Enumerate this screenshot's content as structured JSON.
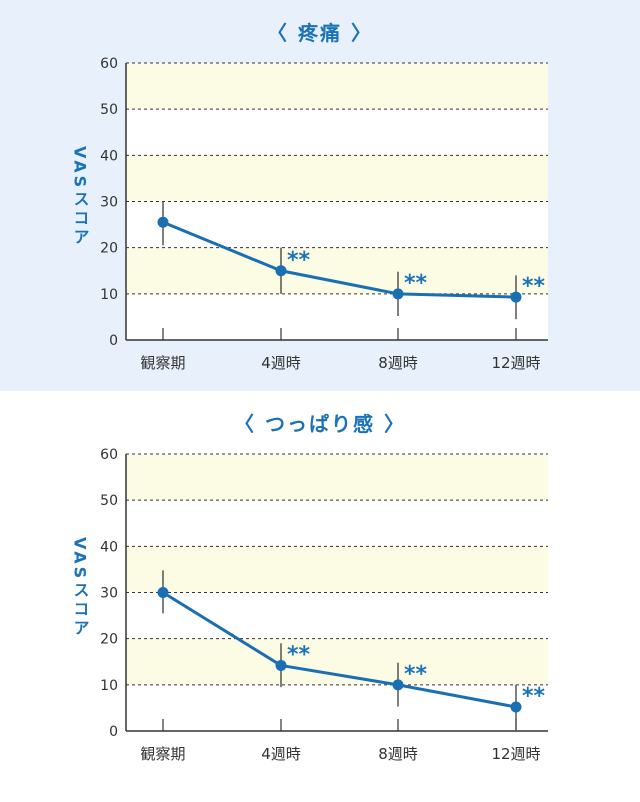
{
  "chart_data": [
    {
      "type": "line",
      "title": "〈 疼痛 〉",
      "ylabel": "VASスコア",
      "xlabel": "",
      "ylim": [
        0,
        60
      ],
      "yticks": [
        0,
        10,
        20,
        30,
        40,
        50,
        60
      ],
      "categories": [
        "観察期",
        "4週時",
        "8週時",
        "12週時"
      ],
      "series": [
        {
          "values": [
            25.5,
            15,
            10,
            9.3
          ],
          "error_low": [
            20.5,
            10,
            5.2,
            4.5
          ],
          "error_high": [
            30,
            20,
            14.8,
            14
          ]
        }
      ],
      "annotations": [
        "",
        "**",
        "**",
        "**"
      ],
      "grid": true,
      "colors": {
        "line": "#1a6fb3",
        "accent": "#1a73b8",
        "band": "#fcfbe4",
        "errorbar": "#555555"
      }
    },
    {
      "type": "line",
      "title": "〈 つっぱり感 〉",
      "ylabel": "VASスコア",
      "xlabel": "",
      "ylim": [
        0,
        60
      ],
      "yticks": [
        0,
        10,
        20,
        30,
        40,
        50,
        60
      ],
      "categories": [
        "観察期",
        "4週時",
        "8週時",
        "12週時"
      ],
      "series": [
        {
          "values": [
            30,
            14.2,
            10,
            5.2
          ],
          "error_low": [
            25.5,
            9.5,
            5.3,
            0
          ],
          "error_high": [
            34.8,
            19,
            14.8,
            10
          ]
        }
      ],
      "annotations": [
        "",
        "**",
        "**",
        "**"
      ],
      "grid": true,
      "colors": {
        "line": "#1a6fb3",
        "accent": "#1a73b8",
        "band": "#fcfbe4",
        "errorbar": "#555555"
      }
    }
  ]
}
